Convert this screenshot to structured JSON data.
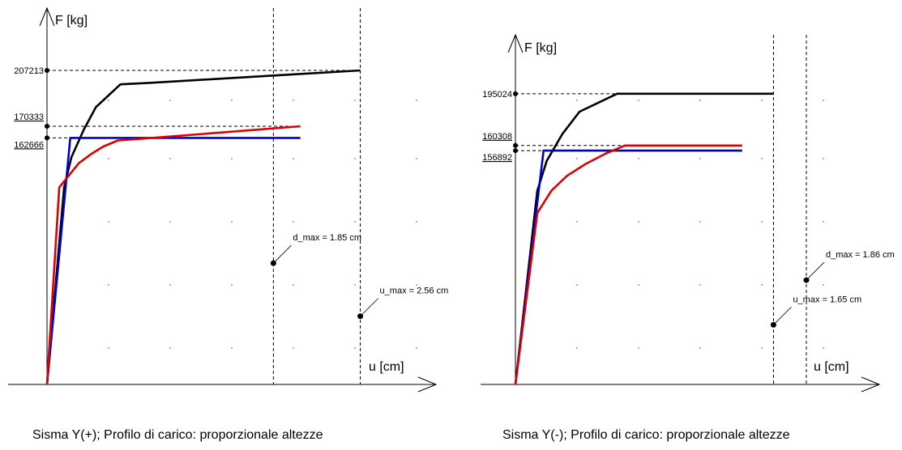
{
  "chart_data": [
    {
      "type": "line",
      "title": "",
      "caption": "Sisma Y(+); Profilo di carico: proporzionale altezze",
      "xlabel": "u [cm]",
      "ylabel": "F [kg]",
      "xlim": [
        0,
        3.0
      ],
      "ylim": [
        0,
        240000
      ],
      "grid": true,
      "series": [
        {
          "color": "#000000",
          "x": [
            0,
            0.14,
            0.2,
            0.3,
            0.4,
            0.6,
            0.85,
            2.56
          ],
          "y": [
            0,
            130000,
            150000,
            168000,
            183000,
            198000,
            199000,
            207213
          ]
        },
        {
          "color": "#0000cc",
          "x": [
            0,
            0.19,
            2.07
          ],
          "y": [
            0,
            162666,
            162666
          ]
        },
        {
          "color": "#dd0000",
          "x": [
            0,
            0.1,
            0.18,
            0.26,
            0.36,
            0.46,
            0.58,
            0.76,
            2.07
          ],
          "y": [
            0,
            130000,
            138000,
            146000,
            152000,
            157000,
            161000,
            162000,
            170333
          ]
        }
      ],
      "y_markers": [
        {
          "label": "207213",
          "value": 207213,
          "underline": false
        },
        {
          "label": "170333",
          "value": 170333,
          "underline": true
        },
        {
          "label": "162666",
          "value": 162666,
          "underline": true
        }
      ],
      "displacement_markers": [
        {
          "label": "d_max = 1.85 cm",
          "x": 1.85,
          "y": 80000
        },
        {
          "label": "u_max = 2.56 cm",
          "x": 2.56,
          "y": 45000
        }
      ]
    },
    {
      "type": "line",
      "title": "",
      "caption": "Sisma Y(-); Profilo di carico: proporzionale altezze",
      "xlabel": "u [cm]",
      "ylabel": "F [kg]",
      "xlim": [
        0,
        2.65
      ],
      "ylim": [
        0,
        240000
      ],
      "grid": true,
      "series": [
        {
          "color": "#000000",
          "x": [
            0,
            0.14,
            0.2,
            0.3,
            0.41,
            0.65,
            0.7,
            1.65
          ],
          "y": [
            0,
            130000,
            150000,
            168000,
            183000,
            195024,
            195024,
            195024
          ]
        },
        {
          "color": "#0000cc",
          "x": [
            0,
            0.18,
            1.45
          ],
          "y": [
            0,
            156892,
            156892
          ]
        },
        {
          "color": "#dd0000",
          "x": [
            0,
            0.14,
            0.23,
            0.33,
            0.45,
            0.58,
            0.7,
            1.45
          ],
          "y": [
            0,
            115000,
            130000,
            140000,
            148000,
            155000,
            160308,
            160308
          ]
        }
      ],
      "y_markers": [
        {
          "label": "195024",
          "value": 195024,
          "underline": false
        },
        {
          "label": "160308",
          "value": 160308,
          "underline": true
        },
        {
          "label": "156892",
          "value": 156892,
          "underline": true
        }
      ],
      "displacement_markers": [
        {
          "label": "d_max = 1.86 cm",
          "x": 1.86,
          "y": 70000
        },
        {
          "label": "u_max = 1.65 cm",
          "x": 1.65,
          "y": 40000
        }
      ]
    }
  ]
}
